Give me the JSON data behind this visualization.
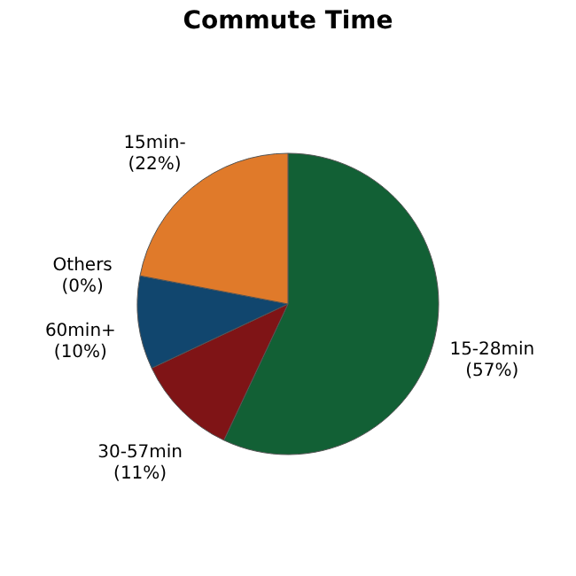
{
  "chart_data": {
    "type": "pie",
    "title": "Commute Time",
    "categories": [
      "15-28min",
      "30-57min",
      "60min+",
      "Others",
      "15min-"
    ],
    "values": [
      57,
      11,
      10,
      0,
      22
    ],
    "value_labels": [
      "(57%)",
      "(11%)",
      "(10%)",
      "(0%)",
      "(22%)"
    ],
    "colors": [
      "#126035",
      "#7f1416",
      "#11466e",
      "#8c8c8c",
      "#e07a2a"
    ],
    "legend": false
  }
}
